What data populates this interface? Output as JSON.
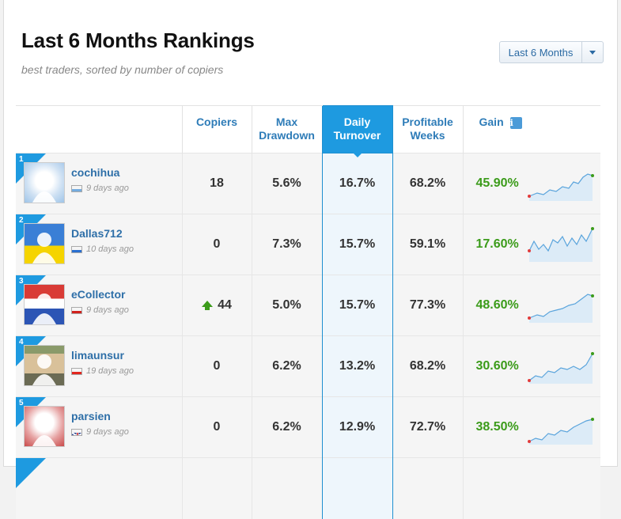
{
  "header": {
    "title": "Last 6 Months Rankings",
    "subtitle": "best traders, sorted by number of copiers",
    "period_button": "Last 6 Months"
  },
  "columns": {
    "copiers": "Copiers",
    "max_drawdown_1": "Max",
    "max_drawdown_2": "Drawdown",
    "daily_turnover_1": "Daily",
    "daily_turnover_2": "Turnover",
    "profitable_weeks_1": "Profitable",
    "profitable_weeks_2": "Weeks",
    "gain": "Gain",
    "gain_info_icon": "i"
  },
  "colors": {
    "accent": "#1e9ae0",
    "link": "#2e6fa8",
    "gain": "#3b9b1a"
  },
  "rows": [
    {
      "rank": "1",
      "name": "cochihua",
      "ago": "9 days ago",
      "flag": "argentina-flag",
      "copiers": "18",
      "copiers_trend": "",
      "max_drawdown": "5.6%",
      "daily_turnover": "16.7%",
      "profitable_weeks": "68.2%",
      "gain": "45.90%"
    },
    {
      "rank": "2",
      "name": "Dallas712",
      "ago": "10 days ago",
      "flag": "ukraine-flag",
      "copiers": "0",
      "copiers_trend": "",
      "max_drawdown": "7.3%",
      "daily_turnover": "15.7%",
      "profitable_weeks": "59.1%",
      "gain": "17.60%"
    },
    {
      "rank": "3",
      "name": "eCollector",
      "ago": "9 days ago",
      "flag": "croatia-flag",
      "copiers": "44",
      "copiers_trend": "up",
      "max_drawdown": "5.0%",
      "daily_turnover": "15.7%",
      "profitable_weeks": "77.3%",
      "gain": "48.60%"
    },
    {
      "rank": "4",
      "name": "limaunsur",
      "ago": "19 days ago",
      "flag": "indonesia-flag",
      "copiers": "0",
      "copiers_trend": "",
      "max_drawdown": "6.2%",
      "daily_turnover": "13.2%",
      "profitable_weeks": "68.2%",
      "gain": "30.60%"
    },
    {
      "rank": "5",
      "name": "parsien",
      "ago": "9 days ago",
      "flag": "uk-flag",
      "copiers": "0",
      "copiers_trend": "",
      "max_drawdown": "6.2%",
      "daily_turnover": "12.9%",
      "profitable_weeks": "72.7%",
      "gain": "38.50%"
    }
  ]
}
